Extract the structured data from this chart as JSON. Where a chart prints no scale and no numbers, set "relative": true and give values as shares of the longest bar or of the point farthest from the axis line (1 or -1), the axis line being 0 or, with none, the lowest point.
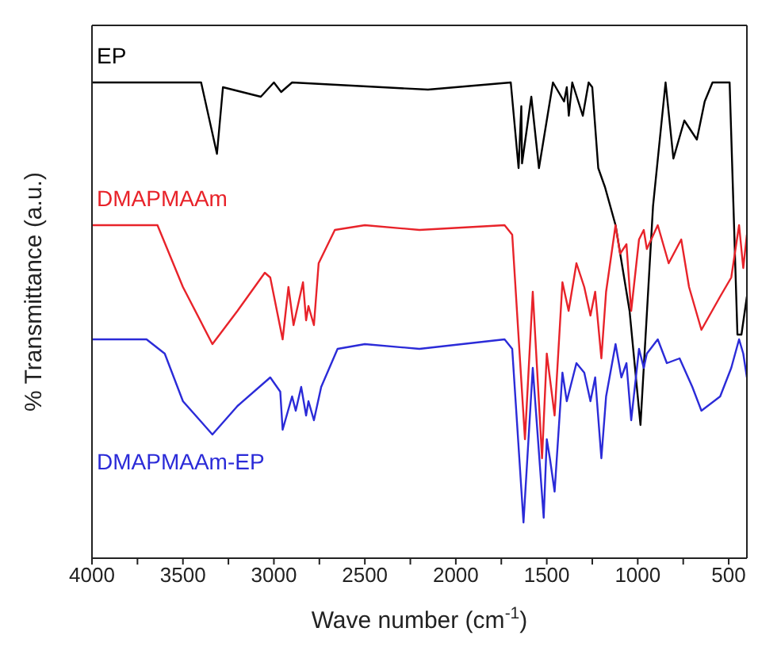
{
  "chart_data": {
    "type": "line",
    "relative": true,
    "xlabel": "Wave number (cm$^{-1}$)",
    "ylabel": "% Transmittance (a.u.)",
    "xlim": [
      4000,
      400
    ],
    "xticks": [
      4000,
      {
        "value": 3750,
        "label": null
      },
      3500,
      {
        "value": 3250,
        "label": null
      },
      3000,
      {
        "value": 2750,
        "label": null
      },
      2500,
      {
        "value": 2250,
        "label": null
      },
      2000,
      {
        "value": 1750,
        "label": null
      },
      1500,
      {
        "value": 1250,
        "label": null
      },
      1000,
      {
        "value": 750,
        "label": null
      },
      500
    ],
    "series": [
      {
        "name": "EP",
        "color": "#000000",
        "x": [
          4000,
          3400,
          3313,
          3280,
          3072,
          3000,
          2960,
          2900,
          2153,
          1698,
          1655,
          1640,
          1636,
          1585,
          1543,
          1466,
          1405,
          1390,
          1379,
          1360,
          1302,
          1270,
          1250,
          1217,
          1180,
          1122,
          1045,
          985,
          916,
          847,
          804,
          744,
          675,
          632,
          589,
          495,
          452,
          430,
          400
        ],
        "values": [
          1.0,
          1.0,
          0.85,
          0.99,
          0.97,
          1.0,
          0.98,
          1.0,
          0.985,
          1.0,
          0.82,
          0.95,
          0.83,
          0.97,
          0.82,
          1.0,
          0.96,
          0.99,
          0.93,
          1.0,
          0.93,
          1.0,
          0.99,
          0.82,
          0.78,
          0.7,
          0.52,
          0.28,
          0.74,
          1.0,
          0.84,
          0.92,
          0.88,
          0.96,
          1.0,
          1.0,
          0.47,
          0.47,
          0.55
        ]
      },
      {
        "name": "DMAPMAAm",
        "color": "#e8232a",
        "x": [
          4000,
          3640,
          3500,
          3338,
          3200,
          3050,
          3020,
          2952,
          2920,
          2892,
          2840,
          2823,
          2810,
          2780,
          2754,
          2665,
          2500,
          2200,
          1732,
          1690,
          1620,
          1577,
          1526,
          1500,
          1457,
          1414,
          1380,
          1337,
          1294,
          1260,
          1234,
          1200,
          1174,
          1122,
          1097,
          1062,
          1036,
          993,
          967,
          950,
          890,
          830,
          761,
          718,
          650,
          547,
          486,
          443,
          420,
          400
        ],
        "values": [
          0.7,
          0.7,
          0.57,
          0.45,
          0.52,
          0.6,
          0.59,
          0.46,
          0.57,
          0.49,
          0.58,
          0.5,
          0.53,
          0.49,
          0.62,
          0.69,
          0.7,
          0.69,
          0.7,
          0.68,
          0.25,
          0.56,
          0.21,
          0.43,
          0.3,
          0.58,
          0.52,
          0.62,
          0.57,
          0.51,
          0.56,
          0.42,
          0.56,
          0.7,
          0.64,
          0.66,
          0.52,
          0.67,
          0.69,
          0.65,
          0.7,
          0.62,
          0.67,
          0.57,
          0.48,
          0.55,
          0.59,
          0.7,
          0.61,
          0.68
        ]
      },
      {
        "name": "DMAPMAAm-EP",
        "color": "#2b2bd8",
        "x": [
          4000,
          3700,
          3600,
          3500,
          3338,
          3200,
          3020,
          2965,
          2952,
          2900,
          2880,
          2850,
          2823,
          2810,
          2780,
          2740,
          2650,
          2500,
          2200,
          1732,
          1690,
          1628,
          1577,
          1517,
          1500,
          1483,
          1457,
          1414,
          1390,
          1337,
          1294,
          1260,
          1234,
          1200,
          1174,
          1122,
          1090,
          1062,
          1036,
          993,
          967,
          950,
          890,
          840,
          770,
          700,
          650,
          547,
          486,
          443,
          420,
          400
        ],
        "values": [
          0.46,
          0.46,
          0.43,
          0.33,
          0.26,
          0.32,
          0.38,
          0.35,
          0.27,
          0.34,
          0.31,
          0.36,
          0.3,
          0.33,
          0.29,
          0.36,
          0.44,
          0.45,
          0.44,
          0.46,
          0.44,
          0.075,
          0.4,
          0.085,
          0.25,
          0.21,
          0.14,
          0.39,
          0.33,
          0.41,
          0.39,
          0.33,
          0.38,
          0.21,
          0.34,
          0.45,
          0.38,
          0.41,
          0.29,
          0.44,
          0.4,
          0.43,
          0.46,
          0.41,
          0.42,
          0.36,
          0.31,
          0.34,
          0.4,
          0.46,
          0.43,
          0.38
        ]
      }
    ]
  }
}
